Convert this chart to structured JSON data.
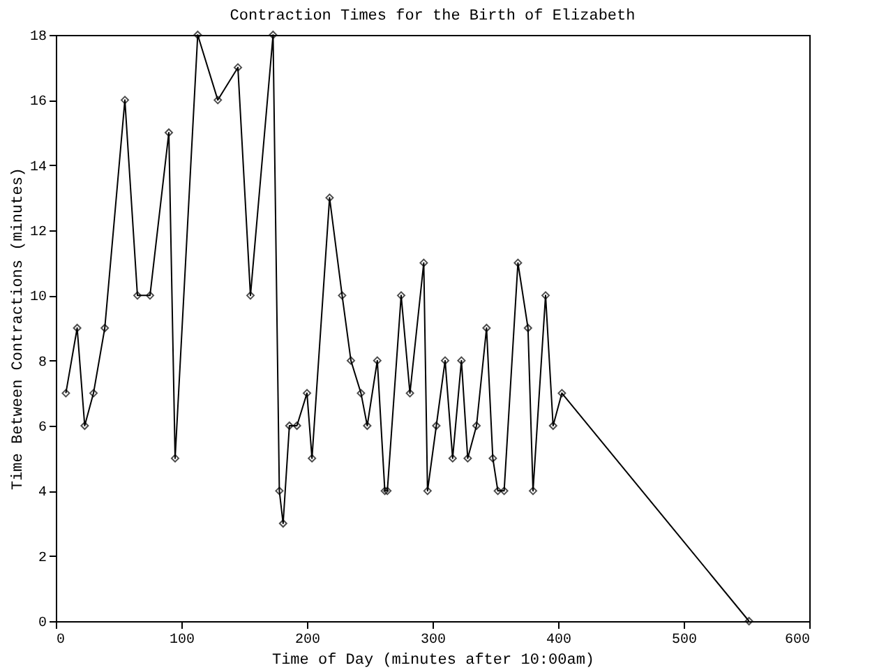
{
  "chart_data": {
    "type": "line",
    "title": "Contraction Times for the Birth of Elizabeth",
    "xlabel": "Time of Day (minutes after 10:00am)",
    "ylabel": "Time Between Contractions (minutes)",
    "x": [
      8,
      17,
      23,
      30,
      39,
      55,
      65,
      75,
      90,
      95,
      113,
      129,
      145,
      155,
      173,
      178,
      181,
      186,
      192,
      200,
      204,
      218,
      228,
      235,
      243,
      248,
      256,
      262,
      264,
      275,
      282,
      293,
      296,
      303,
      310,
      316,
      323,
      328,
      335,
      343,
      348,
      352,
      357,
      368,
      376,
      380,
      390,
      396,
      403,
      552
    ],
    "series": [
      {
        "color": "#000000",
        "values": [
          7,
          9,
          6,
          7,
          9,
          16,
          10,
          10,
          15,
          5,
          18,
          16,
          17,
          10,
          18,
          4,
          3,
          6,
          6,
          7,
          5,
          13,
          10,
          8,
          7,
          6,
          8,
          4,
          4,
          10,
          7,
          11,
          4,
          6,
          8,
          5,
          8,
          5,
          6,
          9,
          5,
          4,
          4,
          11,
          9,
          4,
          10,
          6,
          7,
          0
        ]
      }
    ],
    "xlim": [
      0,
      600
    ],
    "xticks": [
      0,
      100,
      200,
      300,
      400,
      500,
      600
    ],
    "ylim": [
      0,
      18
    ],
    "yticks": [
      0,
      2,
      4,
      6,
      8,
      10,
      12,
      14,
      16,
      18
    ],
    "grid": false,
    "marker": "diamond",
    "line_style": "solid"
  }
}
